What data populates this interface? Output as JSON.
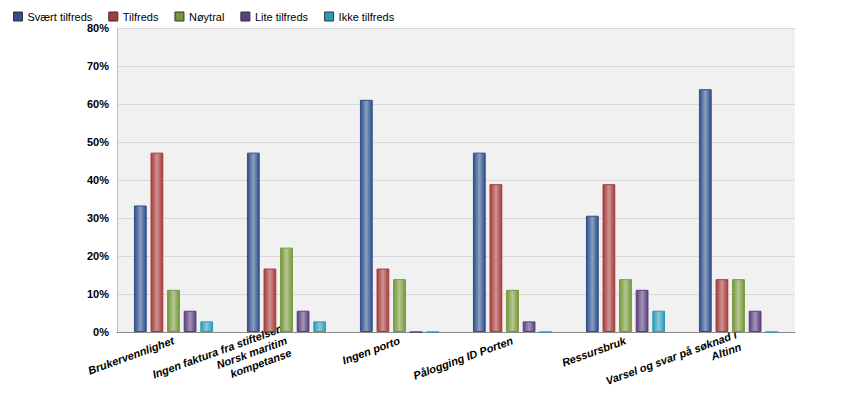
{
  "chart_data": {
    "type": "bar",
    "categories": [
      "Brukervennlighet",
      "Ingen faktura fra stiftelsen\nNorsk maritim\nkompetanse",
      "Ingen porto",
      "Pålogging ID Porten",
      "Ressursbruk",
      "Varsel og svar på søknad i\nAltinn"
    ],
    "series": [
      {
        "name": "Svært tilfreds",
        "color": "#2e4f8c",
        "values": [
          33.3,
          47.2,
          61.1,
          47.2,
          30.6,
          63.9
        ]
      },
      {
        "name": "Tilfreds",
        "color": "#a63a3a",
        "values": [
          47.2,
          16.7,
          16.7,
          38.9,
          38.9,
          13.9
        ]
      },
      {
        "name": "Nøytral",
        "color": "#76983a",
        "values": [
          11.1,
          22.2,
          13.9,
          11.1,
          13.9,
          13.9
        ]
      },
      {
        "name": "Lite tilfreds",
        "color": "#5a3f7c",
        "values": [
          5.6,
          5.6,
          0,
          2.8,
          11.1,
          5.6
        ]
      },
      {
        "name": "Ikke tilfreds",
        "color": "#2b9cb8",
        "values": [
          2.8,
          2.8,
          0,
          0,
          5.6,
          0
        ]
      }
    ],
    "ylim": [
      0,
      80
    ],
    "yticks": [
      {
        "value": 0,
        "label": "0%"
      },
      {
        "value": 10,
        "label": "10%"
      },
      {
        "value": 20,
        "label": "20%"
      },
      {
        "value": 30,
        "label": "30%"
      },
      {
        "value": 40,
        "label": "40%"
      },
      {
        "value": 50,
        "label": "50%"
      },
      {
        "value": 60,
        "label": "60%"
      },
      {
        "value": 70,
        "label": "70%"
      },
      {
        "value": 80,
        "label": "80%"
      }
    ],
    "grid": true,
    "legend": "top-left"
  }
}
